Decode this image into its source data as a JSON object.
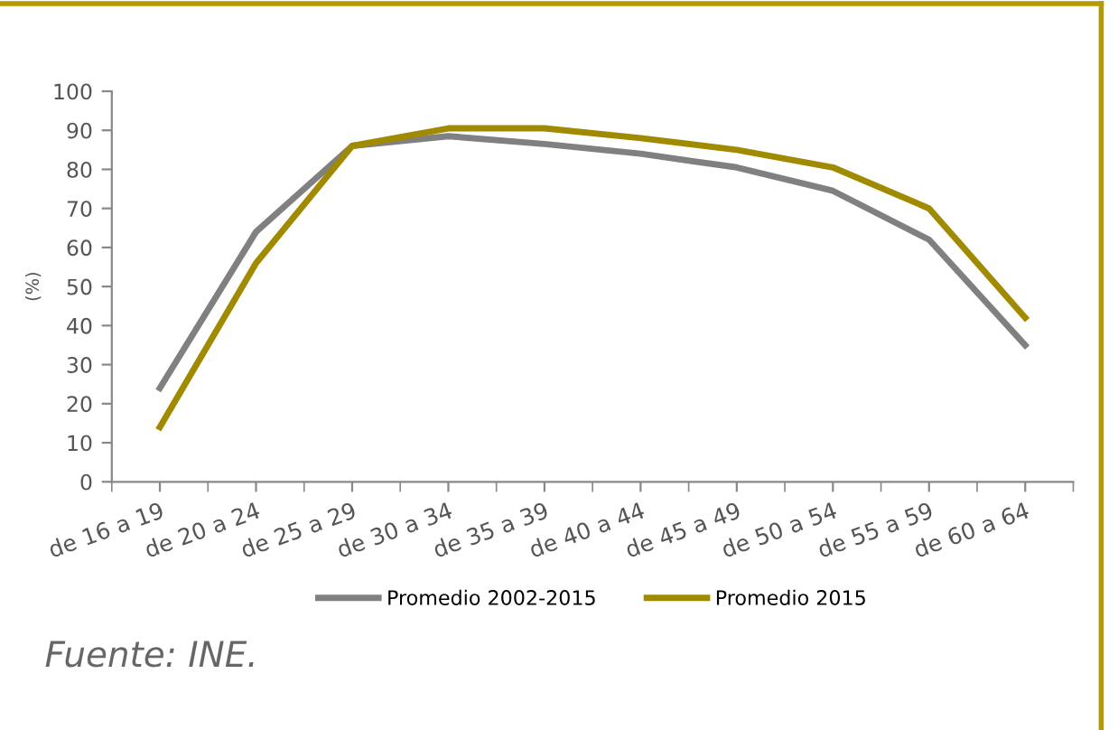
{
  "chart_data": {
    "type": "line",
    "ylabel": "(%)",
    "categories": [
      "de 16 a 19",
      "de 20 a 24",
      "de 25 a 29",
      "de 30 a 34",
      "de 35 a 39",
      "de 40 a 44",
      "de 45 a 49",
      "de 50 a 54",
      "de 55 a 59",
      "de 60 a 64"
    ],
    "series": [
      {
        "name": "Promedio 2002-2015",
        "color": "#808080",
        "values": [
          24,
          64,
          86,
          88.5,
          86.5,
          84,
          80.5,
          74.5,
          62,
          35
        ]
      },
      {
        "name": "Promedio 2015",
        "color": "#a08a00",
        "values": [
          14,
          56,
          86,
          90.5,
          90.5,
          88,
          85,
          80.5,
          70,
          42
        ]
      }
    ],
    "ylim": [
      0,
      100
    ],
    "yticks": [
      0,
      10,
      20,
      30,
      40,
      50,
      60,
      70,
      80,
      90,
      100
    ],
    "grid": false,
    "legend": "bottom",
    "marker": "none",
    "line_style": "solid",
    "annotations": [
      "Fuente: INE."
    ]
  }
}
